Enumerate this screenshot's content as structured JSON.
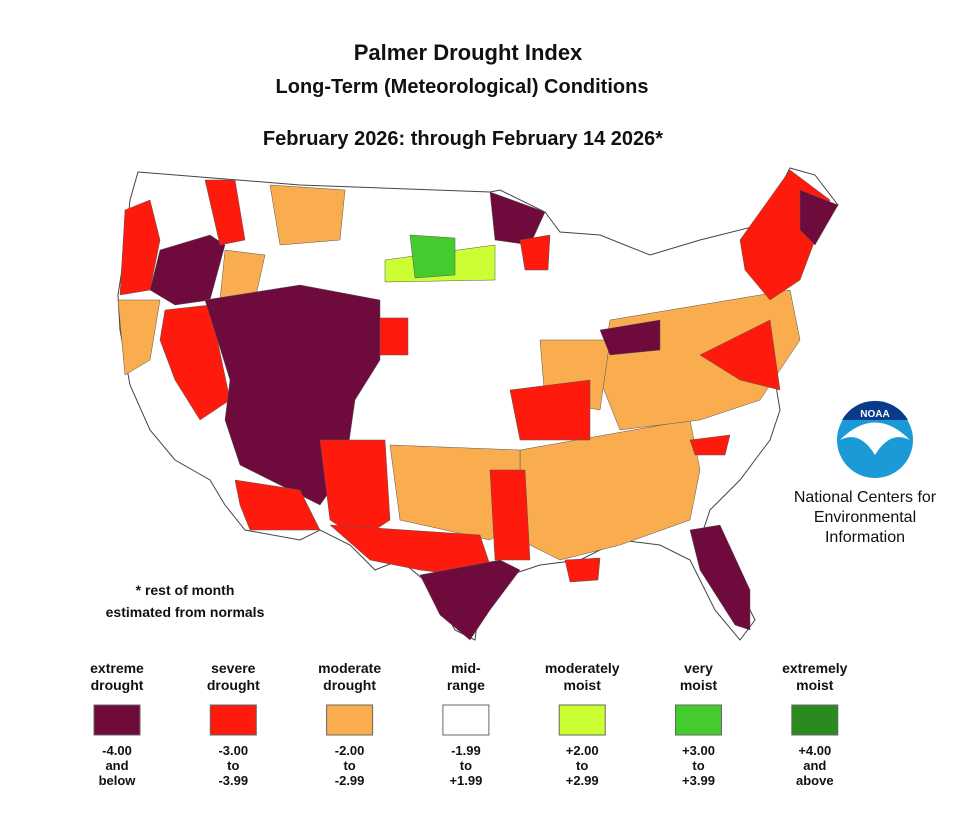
{
  "header": {
    "title": "Palmer Drought Index",
    "subtitle": "Long-Term (Meteorological) Conditions",
    "period": "February 2026: through February 14 2026*"
  },
  "note": [
    "* rest of month",
    "estimated from normals"
  ],
  "logo": {
    "badge": "NOAA",
    "org": [
      "National Centers for",
      "Environmental",
      "Information"
    ]
  },
  "legend": [
    {
      "label": [
        "extreme",
        "drought"
      ],
      "range": [
        "-4.00",
        "and",
        "below"
      ],
      "color": "#6e0b3c"
    },
    {
      "label": [
        "severe",
        "drought"
      ],
      "range": [
        "-3.00",
        "to",
        "-3.99"
      ],
      "color": "#ff1a0e"
    },
    {
      "label": [
        "moderate",
        "drought"
      ],
      "range": [
        "-2.00",
        "to",
        "-2.99"
      ],
      "color": "#f9ad4e"
    },
    {
      "label": [
        "mid-",
        "range"
      ],
      "range": [
        "-1.99",
        "to",
        "+1.99"
      ],
      "color": "#ffffff"
    },
    {
      "label": [
        "moderately",
        "moist"
      ],
      "range": [
        "+2.00",
        "to",
        "+2.99"
      ],
      "color": "#ccff33"
    },
    {
      "label": [
        "very",
        "moist"
      ],
      "range": [
        "+3.00",
        "to",
        "+3.99"
      ],
      "color": "#44cc2e"
    },
    {
      "label": [
        "extremely",
        "moist"
      ],
      "range": [
        "+4.00",
        "and",
        "above"
      ],
      "color": "#2a8a1e"
    }
  ]
}
